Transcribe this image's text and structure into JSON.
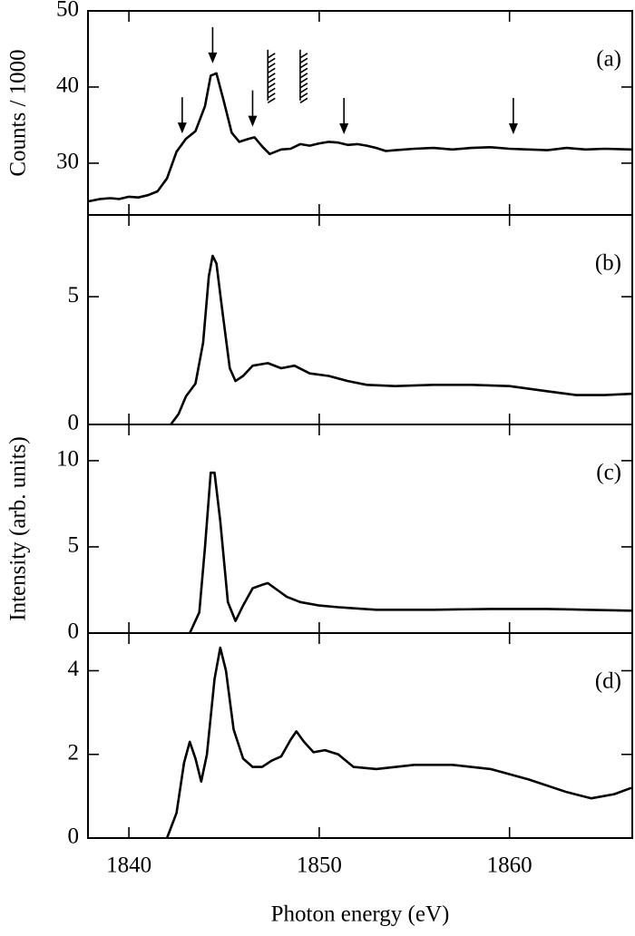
{
  "chart_data": [
    {
      "type": "line",
      "label": "(a)",
      "ylabel": "Counts / 1000",
      "x": [
        1837.9,
        1838.5,
        1839,
        1839.5,
        1840,
        1840.5,
        1841,
        1841.5,
        1842,
        1842.5,
        1843,
        1843.5,
        1844,
        1844.3,
        1844.6,
        1845,
        1845.4,
        1845.8,
        1846.3,
        1846.6,
        1847,
        1847.4,
        1848,
        1848.5,
        1849,
        1849.5,
        1850,
        1850.5,
        1851,
        1851.5,
        1852,
        1852.5,
        1853,
        1853.5,
        1854,
        1855,
        1856,
        1857,
        1858,
        1859,
        1860,
        1861,
        1862,
        1863,
        1864,
        1865,
        1866.4
      ],
      "values": [
        25.0,
        25.3,
        25.4,
        25.3,
        25.6,
        25.5,
        25.8,
        26.3,
        28.0,
        31.5,
        33.2,
        34.2,
        37.5,
        41.5,
        41.8,
        38.0,
        34.0,
        32.8,
        33.2,
        33.4,
        32.2,
        31.2,
        31.8,
        31.9,
        32.5,
        32.3,
        32.6,
        32.8,
        32.7,
        32.4,
        32.5,
        32.3,
        32.0,
        31.6,
        31.7,
        31.9,
        32.0,
        31.8,
        32.0,
        32.1,
        31.9,
        31.8,
        31.7,
        32.0,
        31.8,
        31.9,
        31.8
      ],
      "arrows": [
        {
          "x": 1842.8,
          "y": 33.9
        },
        {
          "x": 1844.4,
          "y": 43.1
        },
        {
          "x": 1846.5,
          "y": 34.8
        },
        {
          "x": 1851.3,
          "y": 33.8
        },
        {
          "x": 1860.2,
          "y": 33.8
        }
      ],
      "hatches": [
        {
          "x": 1847.3,
          "y": 44.9
        },
        {
          "x": 1849.0,
          "y": 44.9
        }
      ],
      "xlim": [
        1837.85,
        1866.45
      ],
      "xticks": [
        1840,
        1850,
        1860
      ],
      "ylim": [
        23.2,
        50
      ],
      "yticks": [
        30,
        40,
        50
      ]
    },
    {
      "type": "line",
      "label": "(b)",
      "x": [
        1842.2,
        1842.6,
        1843,
        1843.5,
        1843.9,
        1844.2,
        1844.4,
        1844.6,
        1844.9,
        1845.3,
        1845.6,
        1846,
        1846.5,
        1847.3,
        1848,
        1848.7,
        1849.5,
        1850.5,
        1851.5,
        1852.5,
        1854,
        1856,
        1858,
        1860,
        1862,
        1863.5,
        1865,
        1866.4
      ],
      "values": [
        0,
        0.4,
        1.1,
        1.6,
        3.2,
        5.8,
        6.6,
        6.3,
        4.5,
        2.2,
        1.7,
        1.9,
        2.3,
        2.4,
        2.2,
        2.3,
        2.0,
        1.9,
        1.7,
        1.55,
        1.5,
        1.55,
        1.55,
        1.5,
        1.3,
        1.15,
        1.15,
        1.2
      ],
      "xlim": [
        1837.85,
        1866.45
      ],
      "xticks": [
        1840,
        1850,
        1860
      ],
      "ylim": [
        0,
        8.2
      ],
      "yticks": [
        0,
        5
      ]
    },
    {
      "type": "line",
      "label": "(c)",
      "ylabel": "Intensity (arb. units)",
      "x": [
        1843.2,
        1843.7,
        1844,
        1844.3,
        1844.5,
        1844.8,
        1845.2,
        1845.6,
        1846,
        1846.5,
        1847,
        1847.3,
        1847.8,
        1848.3,
        1849,
        1850,
        1851,
        1853,
        1856,
        1859,
        1862,
        1864,
        1866.4
      ],
      "values": [
        0,
        1.2,
        5.0,
        9.3,
        9.3,
        6.5,
        1.8,
        0.7,
        1.6,
        2.6,
        2.8,
        2.9,
        2.5,
        2.1,
        1.8,
        1.6,
        1.5,
        1.35,
        1.35,
        1.4,
        1.4,
        1.35,
        1.3
      ],
      "xlim": [
        1837.85,
        1866.45
      ],
      "xticks": [
        1840,
        1850,
        1860
      ],
      "ylim": [
        0,
        12.1
      ],
      "yticks": [
        0,
        5,
        10
      ]
    },
    {
      "type": "line",
      "label": "(d)",
      "xlabel": "Photon energy (eV)",
      "x": [
        1842,
        1842.5,
        1842.9,
        1843.2,
        1843.5,
        1843.8,
        1844.1,
        1844.5,
        1844.8,
        1845.1,
        1845.5,
        1846,
        1846.5,
        1847,
        1847.5,
        1848,
        1848.5,
        1848.8,
        1849.2,
        1849.7,
        1850.3,
        1851,
        1851.8,
        1853,
        1855,
        1857,
        1859,
        1861,
        1863,
        1864.3,
        1865.5,
        1866.4
      ],
      "values": [
        0,
        0.6,
        1.8,
        2.3,
        1.9,
        1.35,
        2.0,
        3.8,
        4.55,
        4.0,
        2.6,
        1.9,
        1.7,
        1.7,
        1.85,
        1.95,
        2.35,
        2.55,
        2.3,
        2.05,
        2.1,
        2.0,
        1.7,
        1.65,
        1.75,
        1.75,
        1.65,
        1.4,
        1.1,
        0.95,
        1.05,
        1.2
      ],
      "xlim": [
        1837.85,
        1866.45
      ],
      "xticks": [
        1840,
        1850,
        1860
      ],
      "ylim": [
        0,
        4.9
      ],
      "yticks": [
        0,
        2,
        4
      ]
    }
  ]
}
